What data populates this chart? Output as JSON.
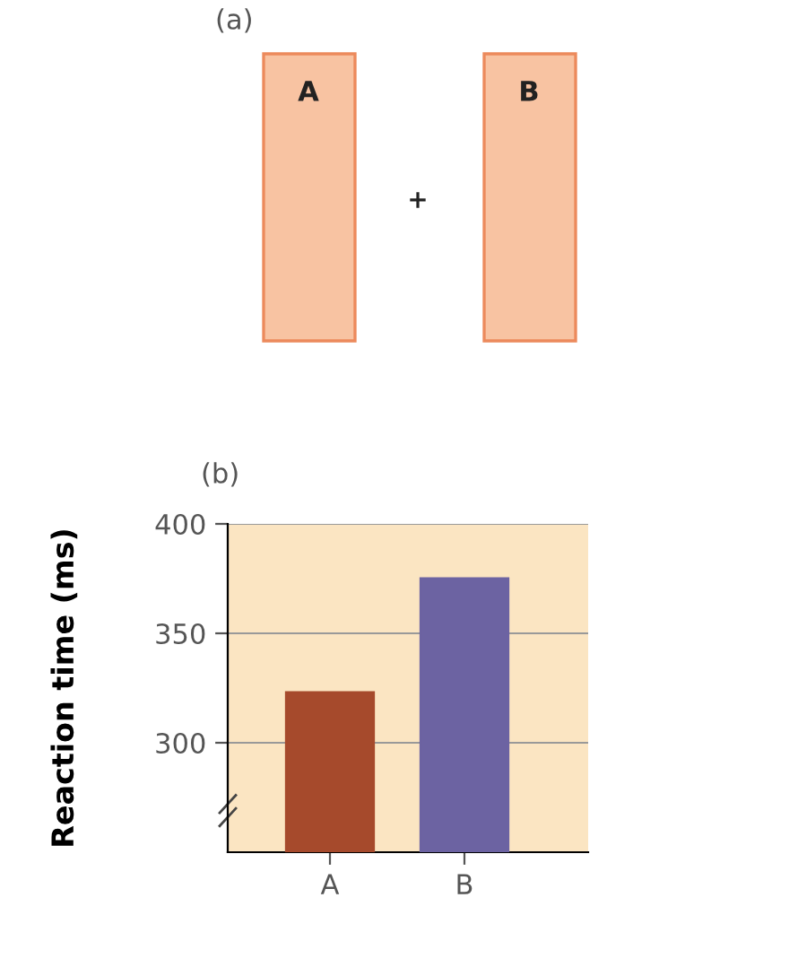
{
  "chart_data": [
    {
      "type": "other",
      "title": "(a)",
      "annotations": [
        "A",
        "+",
        "B"
      ]
    },
    {
      "type": "bar",
      "title": "(b)",
      "ylabel": "Reaction time (ms)",
      "categories": [
        "A",
        "B"
      ],
      "values": [
        323,
        375
      ],
      "colors": [
        "#a64a2c",
        "#6c63a2"
      ],
      "ylim": [
        250,
        400
      ],
      "yticks": [
        300,
        350,
        400
      ],
      "grid": "y"
    }
  ]
}
